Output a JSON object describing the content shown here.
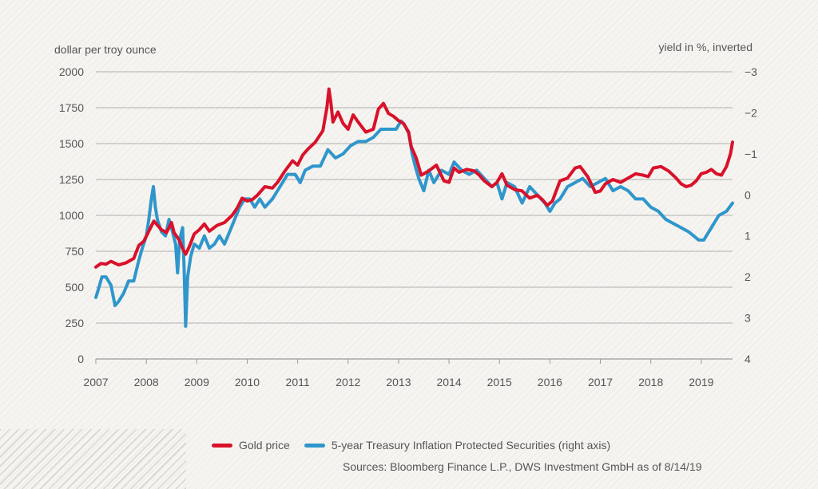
{
  "left_axis_label": "dollar per troy ounce",
  "right_axis_label": "yield in %, inverted",
  "sources": "Sources: Bloomberg Finance L.P., DWS Investment GmbH as of 8/14/19",
  "colors": {
    "gold": "#d9112a",
    "tips": "#2f96cc",
    "grid": "#9a9a9a",
    "text": "#555555"
  },
  "chart_data": {
    "type": "line",
    "xlabel": "",
    "ylabel": "dollar per troy ounce",
    "y2label": "yield in %, inverted",
    "xlim": [
      2007.0,
      2019.62
    ],
    "ylim": [
      0,
      2000
    ],
    "y2lim": [
      4,
      -3
    ],
    "y2_inverted": true,
    "x_ticks": [
      2007,
      2008,
      2009,
      2010,
      2011,
      2012,
      2013,
      2014,
      2015,
      2016,
      2017,
      2018,
      2019
    ],
    "y_ticks": [
      0,
      250,
      500,
      750,
      1000,
      1250,
      1500,
      1750,
      2000
    ],
    "y2_ticks": [
      4,
      3,
      2,
      1,
      0,
      -1,
      -2,
      -3
    ],
    "legend_position": "bottom",
    "grid": "horizontal",
    "series": [
      {
        "name": "Gold price",
        "axis": "left",
        "x": [
          2007.0,
          2007.1,
          2007.2,
          2007.3,
          2007.45,
          2007.6,
          2007.75,
          2007.85,
          2007.95,
          2008.05,
          2008.15,
          2008.2,
          2008.3,
          2008.4,
          2008.5,
          2008.55,
          2008.65,
          2008.72,
          2008.78,
          2008.85,
          2008.95,
          2009.05,
          2009.15,
          2009.25,
          2009.4,
          2009.55,
          2009.7,
          2009.8,
          2009.9,
          2010.0,
          2010.1,
          2010.2,
          2010.35,
          2010.5,
          2010.6,
          2010.75,
          2010.9,
          2011.0,
          2011.1,
          2011.2,
          2011.35,
          2011.5,
          2011.58,
          2011.62,
          2011.66,
          2011.7,
          2011.8,
          2011.9,
          2012.0,
          2012.1,
          2012.2,
          2012.35,
          2012.5,
          2012.6,
          2012.7,
          2012.8,
          2012.9,
          2013.0,
          2013.1,
          2013.2,
          2013.25,
          2013.35,
          2013.45,
          2013.6,
          2013.75,
          2013.9,
          2014.0,
          2014.1,
          2014.2,
          2014.35,
          2014.5,
          2014.6,
          2014.7,
          2014.85,
          2014.95,
          2015.05,
          2015.15,
          2015.3,
          2015.45,
          2015.6,
          2015.75,
          2015.85,
          2015.95,
          2016.05,
          2016.2,
          2016.35,
          2016.5,
          2016.6,
          2016.75,
          2016.9,
          2017.0,
          2017.1,
          2017.25,
          2017.4,
          2017.55,
          2017.7,
          2017.85,
          2017.95,
          2018.05,
          2018.2,
          2018.35,
          2018.5,
          2018.6,
          2018.7,
          2018.8,
          2018.9,
          2019.0,
          2019.1,
          2019.2,
          2019.3,
          2019.4,
          2019.5,
          2019.58,
          2019.62
        ],
        "values": [
          640,
          665,
          660,
          680,
          655,
          670,
          700,
          790,
          820,
          890,
          960,
          940,
          900,
          880,
          950,
          880,
          830,
          770,
          730,
          780,
          870,
          900,
          940,
          890,
          930,
          950,
          1000,
          1050,
          1120,
          1100,
          1110,
          1140,
          1200,
          1190,
          1230,
          1310,
          1380,
          1350,
          1420,
          1460,
          1510,
          1590,
          1750,
          1880,
          1780,
          1650,
          1720,
          1640,
          1600,
          1700,
          1650,
          1580,
          1600,
          1740,
          1780,
          1710,
          1690,
          1660,
          1640,
          1580,
          1480,
          1400,
          1280,
          1310,
          1350,
          1240,
          1230,
          1330,
          1300,
          1320,
          1310,
          1280,
          1240,
          1200,
          1230,
          1290,
          1210,
          1180,
          1170,
          1120,
          1140,
          1110,
          1070,
          1100,
          1240,
          1260,
          1330,
          1340,
          1270,
          1160,
          1170,
          1220,
          1250,
          1230,
          1260,
          1290,
          1280,
          1270,
          1330,
          1340,
          1310,
          1260,
          1220,
          1200,
          1210,
          1240,
          1290,
          1300,
          1320,
          1290,
          1280,
          1340,
          1430,
          1510
        ]
      },
      {
        "name": "5-year Treasury Inflation Protected Securities (right axis)",
        "axis": "right",
        "x": [
          2007.0,
          2007.05,
          2007.12,
          2007.2,
          2007.3,
          2007.38,
          2007.45,
          2007.55,
          2007.65,
          2007.75,
          2007.85,
          2007.92,
          2008.0,
          2008.05,
          2008.1,
          2008.14,
          2008.18,
          2008.22,
          2008.3,
          2008.38,
          2008.45,
          2008.52,
          2008.58,
          2008.62,
          2008.66,
          2008.72,
          2008.75,
          2008.78,
          2008.82,
          2008.88,
          2008.95,
          2009.05,
          2009.15,
          2009.25,
          2009.35,
          2009.45,
          2009.55,
          2009.65,
          2009.75,
          2009.85,
          2009.95,
          2010.05,
          2010.15,
          2010.25,
          2010.35,
          2010.5,
          2010.65,
          2010.8,
          2010.95,
          2011.05,
          2011.15,
          2011.3,
          2011.45,
          2011.6,
          2011.75,
          2011.9,
          2012.05,
          2012.2,
          2012.35,
          2012.5,
          2012.65,
          2012.8,
          2012.95,
          2013.05,
          2013.12,
          2013.2,
          2013.27,
          2013.33,
          2013.4,
          2013.5,
          2013.6,
          2013.7,
          2013.85,
          2014.0,
          2014.1,
          2014.25,
          2014.4,
          2014.55,
          2014.7,
          2014.85,
          2014.95,
          2015.05,
          2015.15,
          2015.3,
          2015.45,
          2015.6,
          2015.75,
          2015.9,
          2016.0,
          2016.1,
          2016.2,
          2016.35,
          2016.5,
          2016.65,
          2016.8,
          2016.95,
          2017.1,
          2017.25,
          2017.4,
          2017.55,
          2017.7,
          2017.85,
          2018.0,
          2018.15,
          2018.3,
          2018.45,
          2018.6,
          2018.75,
          2018.85,
          2018.95,
          2019.05,
          2019.2,
          2019.35,
          2019.5,
          2019.62
        ],
        "values": [
          2.5,
          2.3,
          2.0,
          2.0,
          2.2,
          2.7,
          2.6,
          2.4,
          2.1,
          2.1,
          1.6,
          1.3,
          1.0,
          0.6,
          0.1,
          -0.2,
          0.3,
          0.6,
          0.9,
          1.0,
          0.6,
          0.9,
          1.2,
          1.9,
          1.1,
          0.8,
          1.8,
          3.2,
          2.0,
          1.5,
          1.2,
          1.3,
          1.0,
          1.3,
          1.2,
          1.0,
          1.2,
          0.9,
          0.6,
          0.3,
          0.1,
          0.1,
          0.3,
          0.1,
          0.3,
          0.1,
          -0.2,
          -0.5,
          -0.5,
          -0.3,
          -0.6,
          -0.7,
          -0.7,
          -1.1,
          -0.9,
          -1.0,
          -1.2,
          -1.3,
          -1.3,
          -1.4,
          -1.6,
          -1.6,
          -1.6,
          -1.8,
          -1.7,
          -1.5,
          -1.0,
          -0.7,
          -0.4,
          -0.1,
          -0.6,
          -0.3,
          -0.6,
          -0.5,
          -0.8,
          -0.6,
          -0.5,
          -0.6,
          -0.4,
          -0.2,
          -0.3,
          0.1,
          -0.3,
          -0.2,
          0.2,
          -0.2,
          0.0,
          0.2,
          0.4,
          0.2,
          0.1,
          -0.2,
          -0.3,
          -0.4,
          -0.2,
          -0.3,
          -0.4,
          -0.1,
          -0.2,
          -0.1,
          0.1,
          0.1,
          0.3,
          0.4,
          0.6,
          0.7,
          0.8,
          0.9,
          1.0,
          1.1,
          1.1,
          0.8,
          0.5,
          0.4,
          0.2
        ]
      }
    ]
  }
}
